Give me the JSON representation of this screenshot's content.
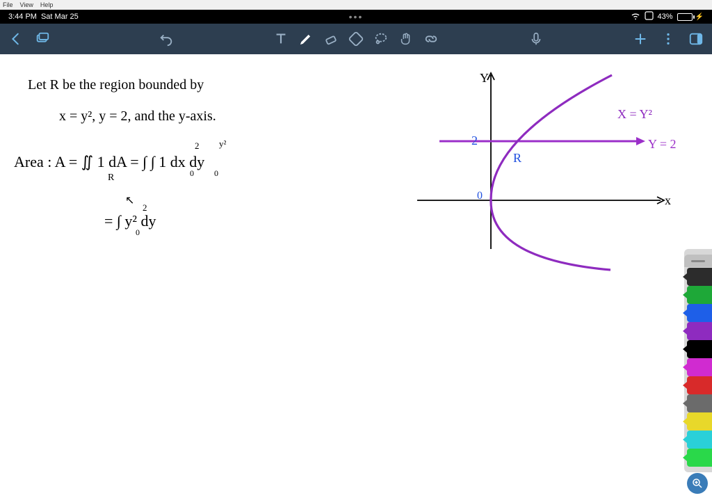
{
  "desktop_menu": {
    "file": "File",
    "view": "View",
    "help": "Help"
  },
  "status_bar": {
    "time": "3:44 PM",
    "date": "Sat Mar 25",
    "center_dots": "•••",
    "battery_pct": "43%",
    "battery_fill_pct": 43
  },
  "handwriting": {
    "line1": "Let  R  be  the  region  bounded  by",
    "line2": "x = y²,     y = 2,    and  the  y-axis.",
    "line3": "Area :  A = ∬  1 dA = ∫  ∫    1  dx dy",
    "line3_sub_R": "R",
    "line3_lim1": "2",
    "line3_lim2": "0",
    "line3_lim3": "y²",
    "line3_lim4": "0",
    "line4": "= ∫   y²  dy",
    "line4_lim1": "2",
    "line4_lim2": "0"
  },
  "graph": {
    "y_label": "Y",
    "x_label": "x",
    "origin_label": "0",
    "region_label": "R",
    "tick_label": "2",
    "curve_label": "X = Y²",
    "hline_label": "Y = 2",
    "colors": {
      "axis": "#000000",
      "curve": "#8e2bbf",
      "hline": "#9b2fc9",
      "tick": "#2050e0",
      "region": "#2050e0"
    }
  },
  "pens": [
    {
      "name": "eraser",
      "color": "#2c2c2c"
    },
    {
      "name": "green-pen",
      "color": "#1ea838"
    },
    {
      "name": "blue-pen",
      "color": "#1e5fe8"
    },
    {
      "name": "purple-pen",
      "color": "#8e2bbf"
    },
    {
      "name": "black-pen",
      "color": "#000000"
    },
    {
      "name": "magenta-pen",
      "color": "#d02bd0"
    },
    {
      "name": "red-pen",
      "color": "#d82a2a"
    },
    {
      "name": "gray-pen",
      "color": "#6b6b6b"
    },
    {
      "name": "yellow-pen",
      "color": "#e8d82a"
    },
    {
      "name": "cyan-hi",
      "color": "#2ad0d8"
    },
    {
      "name": "green-hi",
      "color": "#2ad84a"
    }
  ],
  "colors": {
    "toolbar_bg": "#2d3e50",
    "toolbar_icon": "#9ab0c5",
    "toolbar_icon_active": "#ffffff",
    "zoom_bg": "#3a7cb8"
  }
}
